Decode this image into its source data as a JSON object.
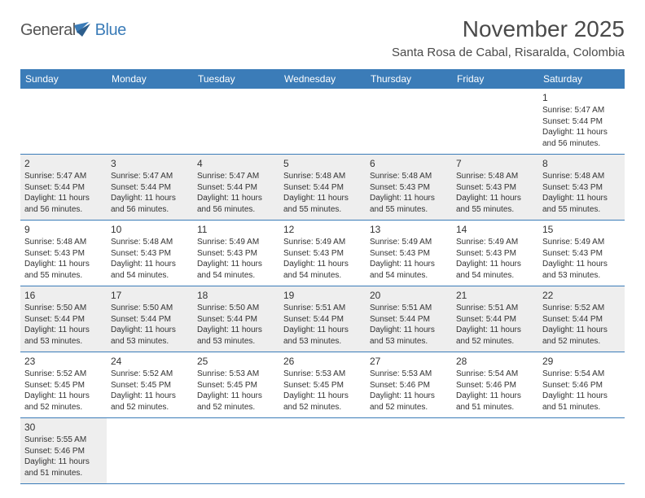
{
  "logo": {
    "text_general": "General",
    "text_blue": "Blue",
    "icon_color": "#3b7cb8"
  },
  "title": "November 2025",
  "location": "Santa Rosa de Cabal, Risaralda, Colombia",
  "header_bg": "#3b7cb8",
  "header_text_color": "#ffffff",
  "cell_border_color": "#3b7cb8",
  "shaded_bg": "#eeeeee",
  "page_bg": "#ffffff",
  "weekdays": [
    "Sunday",
    "Monday",
    "Tuesday",
    "Wednesday",
    "Thursday",
    "Friday",
    "Saturday"
  ],
  "weeks": [
    [
      null,
      null,
      null,
      null,
      null,
      null,
      {
        "day": 1,
        "sunrise": "5:47 AM",
        "sunset": "5:44 PM",
        "daylight": "11 hours and 56 minutes.",
        "shaded": false
      }
    ],
    [
      {
        "day": 2,
        "sunrise": "5:47 AM",
        "sunset": "5:44 PM",
        "daylight": "11 hours and 56 minutes.",
        "shaded": true
      },
      {
        "day": 3,
        "sunrise": "5:47 AM",
        "sunset": "5:44 PM",
        "daylight": "11 hours and 56 minutes.",
        "shaded": true
      },
      {
        "day": 4,
        "sunrise": "5:47 AM",
        "sunset": "5:44 PM",
        "daylight": "11 hours and 56 minutes.",
        "shaded": true
      },
      {
        "day": 5,
        "sunrise": "5:48 AM",
        "sunset": "5:44 PM",
        "daylight": "11 hours and 55 minutes.",
        "shaded": true
      },
      {
        "day": 6,
        "sunrise": "5:48 AM",
        "sunset": "5:43 PM",
        "daylight": "11 hours and 55 minutes.",
        "shaded": true
      },
      {
        "day": 7,
        "sunrise": "5:48 AM",
        "sunset": "5:43 PM",
        "daylight": "11 hours and 55 minutes.",
        "shaded": true
      },
      {
        "day": 8,
        "sunrise": "5:48 AM",
        "sunset": "5:43 PM",
        "daylight": "11 hours and 55 minutes.",
        "shaded": true
      }
    ],
    [
      {
        "day": 9,
        "sunrise": "5:48 AM",
        "sunset": "5:43 PM",
        "daylight": "11 hours and 55 minutes.",
        "shaded": false
      },
      {
        "day": 10,
        "sunrise": "5:48 AM",
        "sunset": "5:43 PM",
        "daylight": "11 hours and 54 minutes.",
        "shaded": false
      },
      {
        "day": 11,
        "sunrise": "5:49 AM",
        "sunset": "5:43 PM",
        "daylight": "11 hours and 54 minutes.",
        "shaded": false
      },
      {
        "day": 12,
        "sunrise": "5:49 AM",
        "sunset": "5:43 PM",
        "daylight": "11 hours and 54 minutes.",
        "shaded": false
      },
      {
        "day": 13,
        "sunrise": "5:49 AM",
        "sunset": "5:43 PM",
        "daylight": "11 hours and 54 minutes.",
        "shaded": false
      },
      {
        "day": 14,
        "sunrise": "5:49 AM",
        "sunset": "5:43 PM",
        "daylight": "11 hours and 54 minutes.",
        "shaded": false
      },
      {
        "day": 15,
        "sunrise": "5:49 AM",
        "sunset": "5:43 PM",
        "daylight": "11 hours and 53 minutes.",
        "shaded": false
      }
    ],
    [
      {
        "day": 16,
        "sunrise": "5:50 AM",
        "sunset": "5:44 PM",
        "daylight": "11 hours and 53 minutes.",
        "shaded": true
      },
      {
        "day": 17,
        "sunrise": "5:50 AM",
        "sunset": "5:44 PM",
        "daylight": "11 hours and 53 minutes.",
        "shaded": true
      },
      {
        "day": 18,
        "sunrise": "5:50 AM",
        "sunset": "5:44 PM",
        "daylight": "11 hours and 53 minutes.",
        "shaded": true
      },
      {
        "day": 19,
        "sunrise": "5:51 AM",
        "sunset": "5:44 PM",
        "daylight": "11 hours and 53 minutes.",
        "shaded": true
      },
      {
        "day": 20,
        "sunrise": "5:51 AM",
        "sunset": "5:44 PM",
        "daylight": "11 hours and 53 minutes.",
        "shaded": true
      },
      {
        "day": 21,
        "sunrise": "5:51 AM",
        "sunset": "5:44 PM",
        "daylight": "11 hours and 52 minutes.",
        "shaded": true
      },
      {
        "day": 22,
        "sunrise": "5:52 AM",
        "sunset": "5:44 PM",
        "daylight": "11 hours and 52 minutes.",
        "shaded": true
      }
    ],
    [
      {
        "day": 23,
        "sunrise": "5:52 AM",
        "sunset": "5:45 PM",
        "daylight": "11 hours and 52 minutes.",
        "shaded": false
      },
      {
        "day": 24,
        "sunrise": "5:52 AM",
        "sunset": "5:45 PM",
        "daylight": "11 hours and 52 minutes.",
        "shaded": false
      },
      {
        "day": 25,
        "sunrise": "5:53 AM",
        "sunset": "5:45 PM",
        "daylight": "11 hours and 52 minutes.",
        "shaded": false
      },
      {
        "day": 26,
        "sunrise": "5:53 AM",
        "sunset": "5:45 PM",
        "daylight": "11 hours and 52 minutes.",
        "shaded": false
      },
      {
        "day": 27,
        "sunrise": "5:53 AM",
        "sunset": "5:46 PM",
        "daylight": "11 hours and 52 minutes.",
        "shaded": false
      },
      {
        "day": 28,
        "sunrise": "5:54 AM",
        "sunset": "5:46 PM",
        "daylight": "11 hours and 51 minutes.",
        "shaded": false
      },
      {
        "day": 29,
        "sunrise": "5:54 AM",
        "sunset": "5:46 PM",
        "daylight": "11 hours and 51 minutes.",
        "shaded": false
      }
    ],
    [
      {
        "day": 30,
        "sunrise": "5:55 AM",
        "sunset": "5:46 PM",
        "daylight": "11 hours and 51 minutes.",
        "shaded": true
      },
      null,
      null,
      null,
      null,
      null,
      null
    ]
  ],
  "labels": {
    "sunrise_prefix": "Sunrise: ",
    "sunset_prefix": "Sunset: ",
    "daylight_prefix": "Daylight: "
  }
}
